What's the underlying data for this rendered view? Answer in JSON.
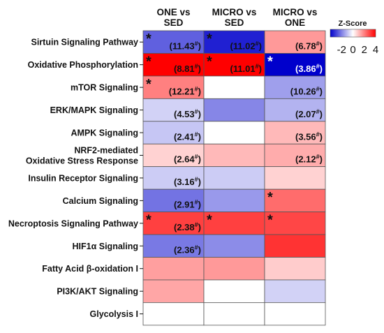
{
  "chart_data": {
    "type": "heatmap",
    "columns": [
      "ONE vs\nSED",
      "MICRO vs\nSED",
      "MICRO vs\nONE"
    ],
    "rows": [
      {
        "label": "Sirtuin Signaling Pathway",
        "z": [
          -2.5,
          -3.5,
          1.6
        ],
        "p": [
          "11.43",
          "11.02",
          "6.78"
        ],
        "sig": [
          true,
          true,
          false
        ]
      },
      {
        "label": "Oxidative Phosphorylation",
        "z": [
          4.2,
          4.2,
          -4.2
        ],
        "p": [
          "8.81",
          "11.01",
          "3.86"
        ],
        "sig": [
          true,
          true,
          true
        ]
      },
      {
        "label": "mTOR Signaling",
        "z": [
          2.0,
          null,
          -1.5
        ],
        "p": [
          "12.21",
          "",
          "10.26"
        ],
        "sig": [
          true,
          false,
          false
        ]
      },
      {
        "label": "ERK/MAPK Signaling",
        "z": [
          -0.7,
          -1.9,
          -1.2
        ],
        "p": [
          "4.53",
          "",
          "2.07"
        ],
        "sig": [
          false,
          false,
          false
        ]
      },
      {
        "label": "AMPK Signaling",
        "z": [
          -0.9,
          0.0,
          1.1
        ],
        "p": [
          "2.41",
          "",
          "3.56"
        ],
        "sig": [
          false,
          false,
          false
        ]
      },
      {
        "label": "NRF2-mediated\nOxidative Stress Response",
        "z": [
          0.7,
          1.1,
          1.3
        ],
        "p": [
          "2.64",
          "",
          "2.12"
        ],
        "sig": [
          false,
          false,
          false
        ]
      },
      {
        "label": "Insulin Receptor Signaling",
        "z": [
          -0.8,
          -0.8,
          0.7
        ],
        "p": [
          "3.16",
          "",
          ""
        ],
        "sig": [
          false,
          false,
          false
        ]
      },
      {
        "label": "Calcium Signaling",
        "z": [
          -2.2,
          -1.6,
          2.3
        ],
        "p": [
          "2.91",
          "",
          ""
        ],
        "sig": [
          false,
          false,
          true
        ]
      },
      {
        "label": "Necroptosis Signaling Pathway",
        "z": [
          3.0,
          3.0,
          2.9
        ],
        "p": [
          "2.38",
          "",
          ""
        ],
        "sig": [
          true,
          true,
          true
        ]
      },
      {
        "label": "HIF1α Signaling",
        "z": [
          -2.1,
          -1.8,
          3.2
        ],
        "p": [
          "2.36",
          "",
          ""
        ],
        "sig": [
          false,
          false,
          false
        ]
      },
      {
        "label": "Fatty Acid β-oxidation I",
        "z": [
          1.5,
          1.6,
          0.8
        ],
        "p": [
          "",
          "",
          ""
        ],
        "sig": [
          false,
          false,
          false
        ]
      },
      {
        "label": "PI3K/AKT Signaling",
        "z": [
          1.4,
          null,
          -0.7
        ],
        "p": [
          "",
          "",
          ""
        ],
        "sig": [
          false,
          false,
          false
        ]
      },
      {
        "label": "Glycolysis I",
        "z": [
          null,
          null,
          null
        ],
        "p": [
          "",
          "",
          ""
        ],
        "sig": [
          false,
          false,
          false
        ]
      }
    ],
    "p_format": [
      "(",
      "#",
      ")"
    ],
    "legend": {
      "title": "Z-Score",
      "ticks": [
        "-2",
        "0",
        "2",
        "4"
      ],
      "range": [
        -4,
        4
      ],
      "colors": {
        "low": "#0000cc",
        "mid": "#ffffff",
        "high": "#ff0000"
      }
    },
    "grid": true
  }
}
